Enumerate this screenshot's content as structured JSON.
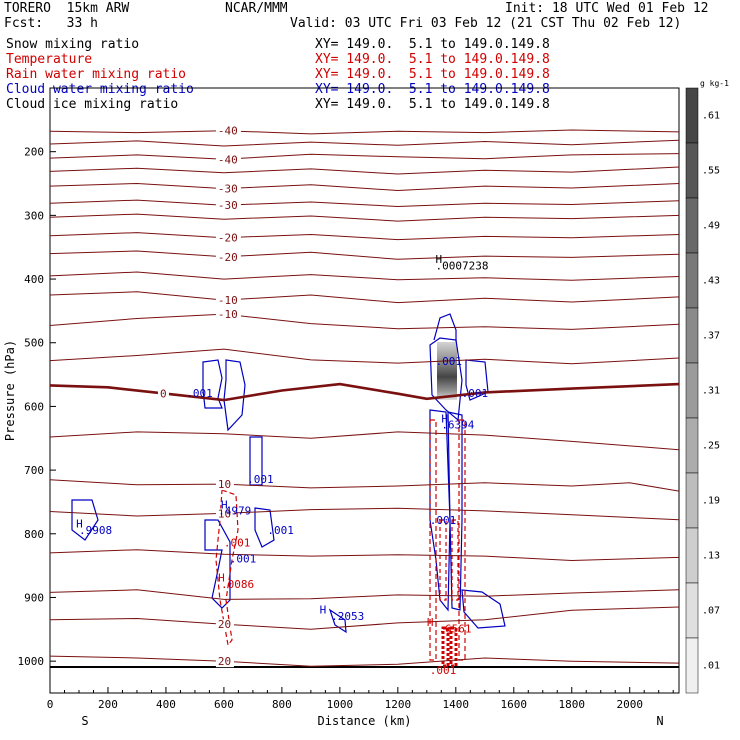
{
  "header": {
    "model": "TORERO  15km ARW",
    "org": "NCAR/MMM",
    "init": "Init: 18 UTC Wed 01 Feb 12",
    "fcst": "Fcst:   33 h",
    "valid": "Valid: 03 UTC Fri 03 Feb 12 (21 CST Thu 02 Feb 12)"
  },
  "fields": [
    {
      "label": "Snow mixing ratio",
      "xy": "XY= 149.0.  5.1 to 149.0.149.8",
      "color": "#000000"
    },
    {
      "label": "Temperature",
      "xy": "XY= 149.0.  5.1 to 149.0.149.8",
      "color": "#d00000"
    },
    {
      "label": "Rain water mixing ratio",
      "xy": "XY= 149.0.  5.1 to 149.0.149.8",
      "color": "#d00000"
    },
    {
      "label": "Cloud water mixing ratio",
      "xy": "XY= 149.0.  5.1 to 149.0.149.8",
      "color": "#0000c0"
    },
    {
      "label": "Cloud ice mixing ratio",
      "xy": "XY= 149.0.  5.1 to 149.0.149.8",
      "color": "#000000"
    }
  ],
  "chart_data": {
    "type": "cross-section contour",
    "xlabel": "Distance (km)",
    "ylabel": "Pressure (hPa)",
    "xlim": [
      0,
      2170
    ],
    "ylim": [
      1050,
      100
    ],
    "xticks": [
      0,
      200,
      400,
      600,
      800,
      1000,
      1200,
      1400,
      1600,
      1800,
      2000
    ],
    "yticks": [
      200,
      300,
      400,
      500,
      600,
      700,
      800,
      900,
      1000
    ],
    "endpoints": {
      "left": "S",
      "right": "N"
    },
    "colorbar": {
      "unit": "g kg-1",
      "labels": [
        ".61",
        ".55",
        ".49",
        ".43",
        ".37",
        ".31",
        ".25",
        ".19",
        ".13",
        ".07",
        ".01"
      ]
    },
    "temperature_contours": [
      {
        "value": -40,
        "label": "-40",
        "series": [
          [
            0,
            168
          ],
          [
            300,
            170
          ],
          [
            600,
            167
          ],
          [
            900,
            172
          ],
          [
            1200,
            168
          ],
          [
            1500,
            170
          ],
          [
            1800,
            166
          ],
          [
            2170,
            169
          ]
        ]
      },
      {
        "value": -40,
        "label": "",
        "series": [
          [
            0,
            188
          ],
          [
            300,
            183
          ],
          [
            600,
            191
          ],
          [
            900,
            185
          ],
          [
            1200,
            190
          ],
          [
            1500,
            184
          ],
          [
            1800,
            189
          ],
          [
            2170,
            182
          ]
        ]
      },
      {
        "value": -40,
        "label": "-40",
        "series": [
          [
            0,
            210
          ],
          [
            300,
            205
          ],
          [
            600,
            212
          ],
          [
            900,
            204
          ],
          [
            1200,
            208
          ],
          [
            1500,
            211
          ],
          [
            1800,
            205
          ],
          [
            2170,
            203
          ]
        ]
      },
      {
        "value": -30,
        "label": "",
        "series": [
          [
            0,
            231
          ],
          [
            300,
            226
          ],
          [
            600,
            233
          ],
          [
            900,
            227
          ],
          [
            1200,
            235
          ],
          [
            1500,
            229
          ],
          [
            1800,
            232
          ],
          [
            2170,
            224
          ]
        ]
      },
      {
        "value": -30,
        "label": "-30",
        "series": [
          [
            0,
            254
          ],
          [
            300,
            250
          ],
          [
            600,
            258
          ],
          [
            900,
            252
          ],
          [
            1200,
            261
          ],
          [
            1500,
            254
          ],
          [
            1800,
            257
          ],
          [
            2170,
            250
          ]
        ]
      },
      {
        "value": -30,
        "label": "-30",
        "series": [
          [
            0,
            281
          ],
          [
            300,
            276
          ],
          [
            600,
            284
          ],
          [
            900,
            279
          ],
          [
            1200,
            286
          ],
          [
            1500,
            281
          ],
          [
            1800,
            283
          ],
          [
            2170,
            277
          ]
        ]
      },
      {
        "value": -20,
        "label": "",
        "series": [
          [
            0,
            303
          ],
          [
            300,
            298
          ],
          [
            600,
            306
          ],
          [
            900,
            301
          ],
          [
            1200,
            309
          ],
          [
            1500,
            303
          ],
          [
            1800,
            305
          ],
          [
            2170,
            300
          ]
        ]
      },
      {
        "value": -20,
        "label": "-20",
        "series": [
          [
            0,
            332
          ],
          [
            300,
            327
          ],
          [
            600,
            335
          ],
          [
            900,
            330
          ],
          [
            1200,
            338
          ],
          [
            1500,
            333
          ],
          [
            1800,
            335
          ],
          [
            2170,
            330
          ]
        ]
      },
      {
        "value": -20,
        "label": "-20",
        "series": [
          [
            0,
            360
          ],
          [
            300,
            356
          ],
          [
            600,
            365
          ],
          [
            900,
            358
          ],
          [
            1200,
            369
          ],
          [
            1500,
            364
          ],
          [
            1800,
            366
          ],
          [
            2170,
            361
          ]
        ]
      },
      {
        "value": -10,
        "label": "",
        "series": [
          [
            0,
            395
          ],
          [
            300,
            389
          ],
          [
            600,
            400
          ],
          [
            900,
            393
          ],
          [
            1200,
            401
          ],
          [
            1500,
            398
          ],
          [
            1800,
            402
          ],
          [
            2170,
            396
          ]
        ]
      },
      {
        "value": -10,
        "label": "-10",
        "series": [
          [
            0,
            425
          ],
          [
            300,
            420
          ],
          [
            600,
            433
          ],
          [
            900,
            425
          ],
          [
            1200,
            437
          ],
          [
            1500,
            430
          ],
          [
            1800,
            436
          ],
          [
            2170,
            428
          ]
        ]
      },
      {
        "value": -10,
        "label": "-10",
        "series": [
          [
            0,
            473
          ],
          [
            300,
            462
          ],
          [
            600,
            455
          ],
          [
            900,
            470
          ],
          [
            1200,
            478
          ],
          [
            1500,
            475
          ],
          [
            1800,
            479
          ],
          [
            2170,
            471
          ]
        ]
      },
      {
        "value": -10,
        "label": "",
        "series": [
          [
            0,
            528
          ],
          [
            300,
            520
          ],
          [
            600,
            510
          ],
          [
            900,
            527
          ],
          [
            1200,
            532
          ],
          [
            1500,
            526
          ],
          [
            1800,
            533
          ],
          [
            2170,
            524
          ]
        ]
      },
      {
        "value": 0,
        "label": "0",
        "series": [
          [
            0,
            567
          ],
          [
            200,
            570
          ],
          [
            400,
            580
          ],
          [
            600,
            590
          ],
          [
            800,
            575
          ],
          [
            1000,
            565
          ],
          [
            1200,
            580
          ],
          [
            1300,
            588
          ],
          [
            1500,
            578
          ],
          [
            1800,
            572
          ],
          [
            2170,
            565
          ]
        ],
        "bold": true
      },
      {
        "value": 0,
        "label": "",
        "series": [
          [
            0,
            648
          ],
          [
            300,
            640
          ],
          [
            600,
            643
          ],
          [
            900,
            650
          ],
          [
            1200,
            640
          ],
          [
            1500,
            645
          ],
          [
            1800,
            655
          ],
          [
            2170,
            668
          ]
        ]
      },
      {
        "value": 10,
        "label": "10",
        "series": [
          [
            0,
            715
          ],
          [
            300,
            723
          ],
          [
            600,
            722
          ],
          [
            900,
            728
          ],
          [
            1200,
            725
          ],
          [
            1500,
            720
          ],
          [
            1800,
            725
          ],
          [
            2000,
            720
          ],
          [
            2170,
            733
          ]
        ]
      },
      {
        "value": 10,
        "label": "10",
        "series": [
          [
            0,
            765
          ],
          [
            300,
            772
          ],
          [
            600,
            768
          ],
          [
            900,
            762
          ],
          [
            1200,
            760
          ],
          [
            1500,
            764
          ],
          [
            1800,
            770
          ],
          [
            2170,
            778
          ]
        ]
      },
      {
        "value": 10,
        "label": "",
        "series": [
          [
            0,
            830
          ],
          [
            300,
            825
          ],
          [
            600,
            832
          ],
          [
            900,
            835
          ],
          [
            1200,
            833
          ],
          [
            1500,
            835
          ],
          [
            1800,
            842
          ],
          [
            2170,
            837
          ]
        ]
      },
      {
        "value": 20,
        "label": "",
        "series": [
          [
            0,
            892
          ],
          [
            300,
            888
          ],
          [
            600,
            903
          ],
          [
            900,
            902
          ],
          [
            1200,
            896
          ],
          [
            1500,
            898
          ],
          [
            1800,
            893
          ],
          [
            2170,
            888
          ]
        ]
      },
      {
        "value": 20,
        "label": "20",
        "series": [
          [
            0,
            935
          ],
          [
            300,
            933
          ],
          [
            600,
            942
          ],
          [
            900,
            950
          ],
          [
            1200,
            940
          ],
          [
            1500,
            935
          ],
          [
            1800,
            920
          ],
          [
            2170,
            915
          ]
        ]
      },
      {
        "value": 20,
        "label": "20",
        "series": [
          [
            0,
            992
          ],
          [
            300,
            995
          ],
          [
            600,
            1000
          ],
          [
            900,
            1008
          ],
          [
            1200,
            1005
          ],
          [
            1500,
            995
          ],
          [
            1800,
            1000
          ],
          [
            2170,
            1003
          ]
        ]
      }
    ],
    "annotations": [
      {
        "x": 1330,
        "y": 375,
        "text": "H",
        "color": "#000000"
      },
      {
        "x": 1330,
        "y": 385,
        "text": ".0007238",
        "color": "#000000"
      },
      {
        "x": 1330,
        "y": 535,
        "text": ".001",
        "color": "#0000c0"
      },
      {
        "x": 1420,
        "y": 585,
        "text": ".001",
        "color": "#0000c0"
      },
      {
        "x": 1350,
        "y": 625,
        "text": "H",
        "color": "#0000c0"
      },
      {
        "x": 1350,
        "y": 635,
        "text": ".6394",
        "color": "#0000c0"
      },
      {
        "x": 470,
        "y": 585,
        "text": ".001",
        "color": "#0000c0"
      },
      {
        "x": 680,
        "y": 720,
        "text": ".001",
        "color": "#0000c0"
      },
      {
        "x": 590,
        "y": 760,
        "text": "H",
        "color": "#0000c0"
      },
      {
        "x": 580,
        "y": 770,
        "text": ".4979",
        "color": "#0000c0"
      },
      {
        "x": 90,
        "y": 790,
        "text": "H",
        "color": "#0000c0"
      },
      {
        "x": 100,
        "y": 800,
        "text": ".9908",
        "color": "#0000c0"
      },
      {
        "x": 750,
        "y": 800,
        "text": ".001",
        "color": "#0000c0"
      },
      {
        "x": 600,
        "y": 820,
        "text": ".001",
        "color": "#d00000"
      },
      {
        "x": 620,
        "y": 845,
        "text": ".001",
        "color": "#0000c0"
      },
      {
        "x": 580,
        "y": 875,
        "text": "H",
        "color": "#d00000"
      },
      {
        "x": 590,
        "y": 885,
        "text": ".0086",
        "color": "#d00000"
      },
      {
        "x": 930,
        "y": 925,
        "text": "H",
        "color": "#0000c0"
      },
      {
        "x": 970,
        "y": 935,
        "text": ".2053",
        "color": "#0000c0"
      },
      {
        "x": 1300,
        "y": 945,
        "text": "H",
        "color": "#d00000"
      },
      {
        "x": 1340,
        "y": 955,
        "text": ".6561",
        "color": "#d00000"
      },
      {
        "x": 1310,
        "y": 1020,
        "text": ".001",
        "color": "#d00000"
      },
      {
        "x": 1310,
        "y": 785,
        "text": ".001",
        "color": "#0000c0"
      }
    ]
  }
}
